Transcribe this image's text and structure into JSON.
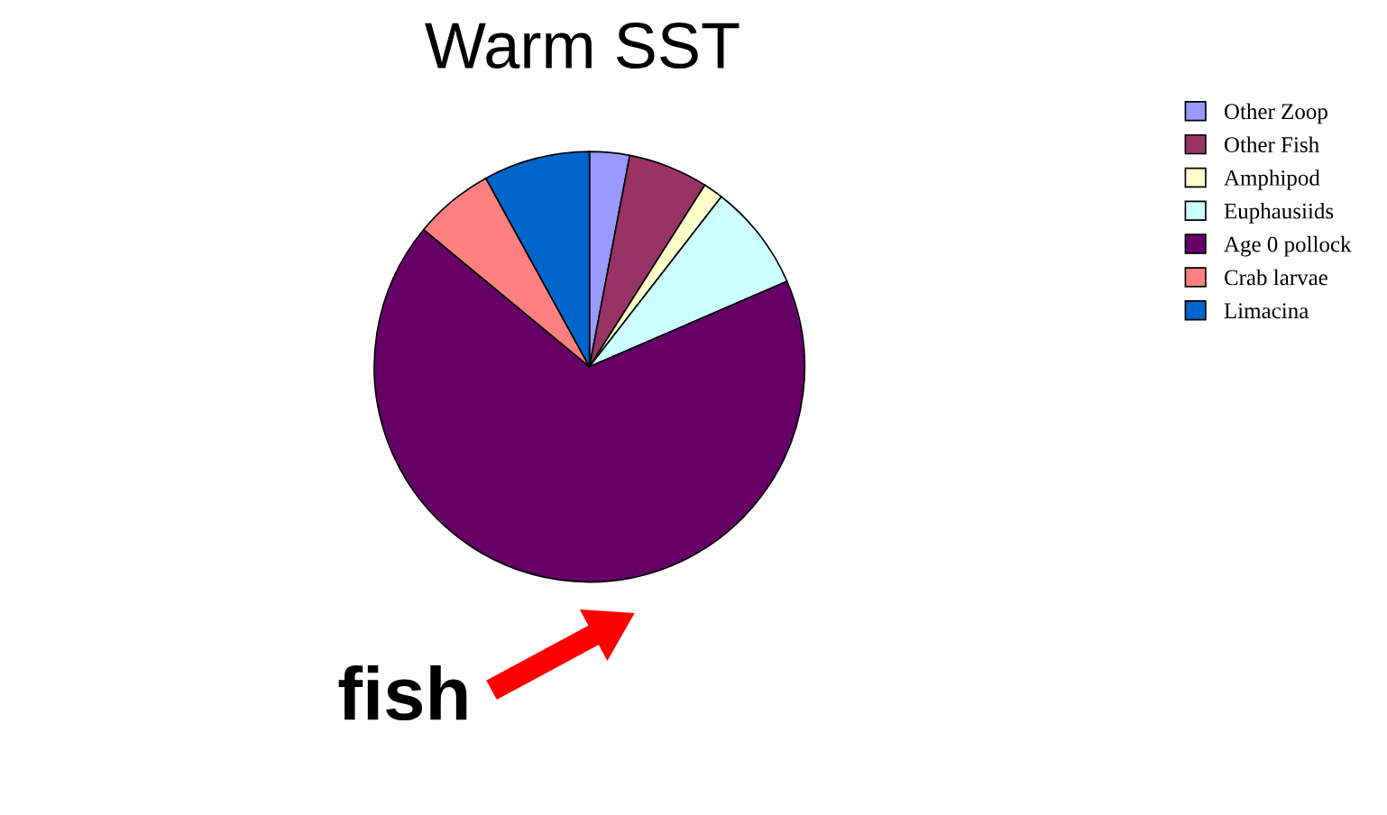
{
  "chart_data": {
    "type": "pie",
    "title": "Warm SST",
    "categories": [
      "Other Zoop",
      "Other Fish",
      "Amphipod",
      "Euphausiids",
      "Age 0 pollock",
      "Crab larvae",
      "Limacina"
    ],
    "values": [
      3,
      6,
      1.5,
      8,
      67.5,
      6,
      8
    ],
    "colors": [
      "#9999ff",
      "#993366",
      "#ffffcc",
      "#ccffff",
      "#660066",
      "#ff8080",
      "#0066cc"
    ],
    "legend": "right",
    "annotations": [
      "fish"
    ]
  }
}
